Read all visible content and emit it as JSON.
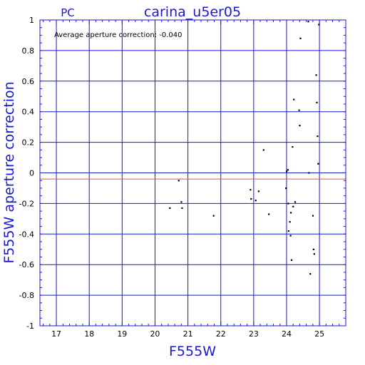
{
  "chart_data": {
    "type": "scatter",
    "title": "carina_u5er05",
    "subtitle": "PC",
    "xlabel": "F555W",
    "ylabel": "F555W aperture correction",
    "annotation": "Average aperture correction: -0.040",
    "average_value": -0.04,
    "xlim": [
      16.5,
      25.8
    ],
    "ylim": [
      -1,
      1
    ],
    "xticks": [
      17,
      18,
      19,
      20,
      21,
      22,
      23,
      24,
      25
    ],
    "yticks": [
      -1,
      -0.8,
      -0.6,
      -0.4,
      -0.2,
      0,
      0.2,
      0.4,
      0.6,
      0.8,
      1
    ],
    "xminor_step": 0.2,
    "yminor_step": 0.05,
    "grid": true,
    "colors": {
      "axis": "#1a1acc",
      "grid": "#1a1acc",
      "average_line": "#cc6633",
      "points": "#000000",
      "labels": "#1a1acc"
    },
    "points": [
      {
        "x": 20.45,
        "y": -0.23
      },
      {
        "x": 20.72,
        "y": -0.05
      },
      {
        "x": 20.8,
        "y": -0.19
      },
      {
        "x": 20.82,
        "y": -0.23
      },
      {
        "x": 21.78,
        "y": -0.28
      },
      {
        "x": 22.9,
        "y": -0.11
      },
      {
        "x": 22.92,
        "y": -0.17
      },
      {
        "x": 23.06,
        "y": -0.18
      },
      {
        "x": 23.15,
        "y": -0.12
      },
      {
        "x": 23.3,
        "y": 0.15
      },
      {
        "x": 23.46,
        "y": -0.27
      },
      {
        "x": 23.98,
        "y": -0.1
      },
      {
        "x": 24.0,
        "y": 0.01
      },
      {
        "x": 24.04,
        "y": 0.02
      },
      {
        "x": 24.05,
        "y": -0.2
      },
      {
        "x": 24.06,
        "y": -0.38
      },
      {
        "x": 24.1,
        "y": -0.32
      },
      {
        "x": 24.12,
        "y": -0.41
      },
      {
        "x": 24.13,
        "y": -0.26
      },
      {
        "x": 24.15,
        "y": -0.57
      },
      {
        "x": 24.18,
        "y": 0.17
      },
      {
        "x": 24.2,
        "y": -0.22
      },
      {
        "x": 24.22,
        "y": 0.48
      },
      {
        "x": 24.26,
        "y": -0.19
      },
      {
        "x": 24.38,
        "y": 0.41
      },
      {
        "x": 24.4,
        "y": 0.31
      },
      {
        "x": 24.42,
        "y": 0.88
      },
      {
        "x": 24.66,
        "y": 0.99
      },
      {
        "x": 24.68,
        "y": 0.0
      },
      {
        "x": 24.72,
        "y": -0.66
      },
      {
        "x": 24.8,
        "y": -0.28
      },
      {
        "x": 24.82,
        "y": -0.5
      },
      {
        "x": 24.84,
        "y": -0.53
      },
      {
        "x": 24.9,
        "y": 0.64
      },
      {
        "x": 24.92,
        "y": 0.46
      },
      {
        "x": 24.94,
        "y": 0.24
      },
      {
        "x": 24.96,
        "y": 0.06
      },
      {
        "x": 24.98,
        "y": 0.97
      }
    ]
  }
}
